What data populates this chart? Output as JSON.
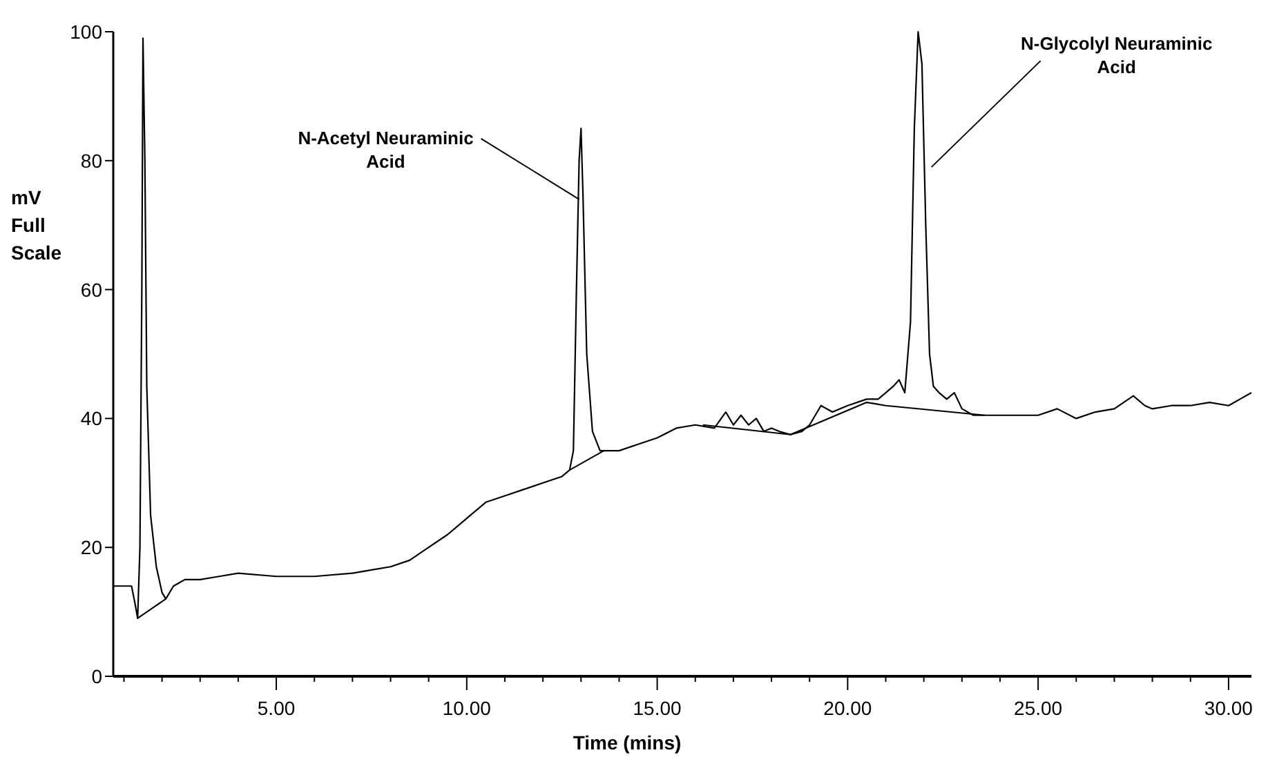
{
  "chart_data": {
    "type": "line",
    "xlabel": "Time (mins)",
    "ylabel": "mV\nFull\nScale",
    "xlim": [
      0.72,
      30.6
    ],
    "ylim": [
      0,
      100
    ],
    "xticks": [
      {
        "value": 1,
        "label": null
      },
      {
        "value": 2,
        "label": null
      },
      {
        "value": 3,
        "label": null
      },
      {
        "value": 4,
        "label": null
      },
      {
        "value": 5,
        "label": "5.00"
      },
      {
        "value": 6,
        "label": null
      },
      {
        "value": 7,
        "label": null
      },
      {
        "value": 8,
        "label": null
      },
      {
        "value": 9,
        "label": null
      },
      {
        "value": 10,
        "label": "10.00"
      },
      {
        "value": 11,
        "label": null
      },
      {
        "value": 12,
        "label": null
      },
      {
        "value": 13,
        "label": null
      },
      {
        "value": 14,
        "label": null
      },
      {
        "value": 15,
        "label": "15.00"
      },
      {
        "value": 16,
        "label": null
      },
      {
        "value": 17,
        "label": null
      },
      {
        "value": 18,
        "label": null
      },
      {
        "value": 19,
        "label": null
      },
      {
        "value": 20,
        "label": "20.00"
      },
      {
        "value": 21,
        "label": null
      },
      {
        "value": 22,
        "label": null
      },
      {
        "value": 23,
        "label": null
      },
      {
        "value": 24,
        "label": null
      },
      {
        "value": 25,
        "label": "25.00"
      },
      {
        "value": 26,
        "label": null
      },
      {
        "value": 27,
        "label": null
      },
      {
        "value": 28,
        "label": null
      },
      {
        "value": 29,
        "label": null
      },
      {
        "value": 30,
        "label": "30.00"
      }
    ],
    "yticks": [
      0,
      20,
      40,
      60,
      80,
      100
    ],
    "grid": false,
    "line_style": "solid",
    "series": [
      {
        "color": "#000000",
        "x": [
          0.72,
          1.2,
          1.3,
          1.36,
          1.42,
          1.47,
          1.5,
          1.55,
          1.6,
          1.7,
          1.85,
          2.0,
          2.1,
          2.3,
          2.6,
          3.0,
          3.5,
          4.0,
          5.0,
          6.0,
          7.0,
          7.5,
          8.0,
          8.5,
          9.0,
          9.5,
          10.0,
          10.5,
          11.0,
          11.5,
          12.0,
          12.5,
          12.7,
          12.8,
          12.88,
          12.95,
          13.0,
          13.05,
          13.15,
          13.3,
          13.5,
          14.0,
          14.5,
          15.0,
          15.5,
          16.0,
          16.5,
          16.8,
          17.0,
          17.2,
          17.4,
          17.6,
          17.8,
          18.0,
          18.2,
          18.5,
          18.8,
          19.0,
          19.3,
          19.6,
          20.0,
          20.5,
          20.8,
          21.0,
          21.2,
          21.35,
          21.5,
          21.65,
          21.75,
          21.85,
          21.95,
          22.05,
          22.15,
          22.25,
          22.4,
          22.6,
          22.8,
          23.0,
          23.3,
          23.6,
          24.0,
          24.5,
          25.0,
          25.5,
          26.0,
          26.5,
          27.0,
          27.5,
          27.8,
          28.0,
          28.5,
          29.0,
          29.5,
          30.0,
          30.3,
          30.6
        ],
        "values": [
          14,
          14,
          11,
          9,
          20,
          60,
          99,
          80,
          45,
          25,
          17,
          13,
          12,
          14,
          15,
          15,
          15.5,
          16,
          15.5,
          15.5,
          16,
          16.5,
          17,
          18,
          20,
          22,
          24.5,
          27,
          28,
          29,
          30,
          31,
          32,
          35,
          60,
          80,
          85,
          75,
          50,
          38,
          35,
          35,
          36,
          37,
          38.5,
          39,
          38.5,
          41,
          39,
          40.5,
          39,
          40,
          38,
          38.5,
          38,
          37.5,
          38,
          39,
          42,
          41,
          42,
          43,
          43,
          44,
          45,
          46,
          44,
          55,
          85,
          100,
          95,
          70,
          50,
          45,
          44,
          43,
          44,
          41.5,
          40.5,
          40.5,
          40.5,
          40.5,
          40.5,
          41.5,
          40,
          41,
          41.5,
          43.5,
          42,
          41.5,
          42,
          42,
          42.5,
          42,
          43,
          44
        ]
      },
      {
        "color": "#000000",
        "x": [
          1.36,
          2.1,
          null,
          12.7,
          13.6,
          null,
          16.2,
          18.5,
          20.5,
          21.0,
          23.6
        ],
        "values": [
          9,
          12,
          null,
          32,
          35,
          null,
          39,
          37.5,
          42.5,
          42,
          40.5
        ]
      }
    ],
    "annotations": [
      {
        "text": "N-Acetyl Neuraminic\nAcid",
        "x": 12.95,
        "y": 74
      },
      {
        "text": "N-Glycolyl Neuraminic\nAcid",
        "x": 22.2,
        "y": 79
      }
    ]
  }
}
